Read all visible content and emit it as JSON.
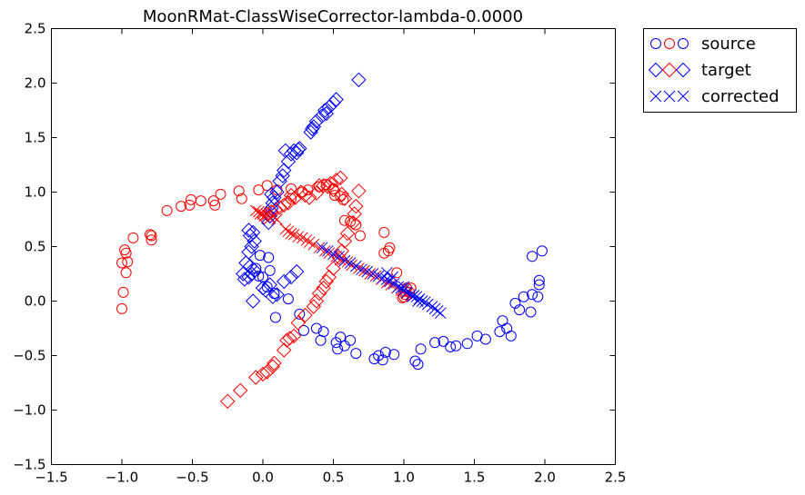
{
  "chart_data": {
    "type": "scatter",
    "title": "MoonRMat-ClassWiseCorrector-lambda-0.0000",
    "xlabel": "",
    "ylabel": "",
    "xlim": [
      -1.5,
      2.5
    ],
    "ylim": [
      -1.5,
      2.5
    ],
    "xticks": [
      -1.5,
      -1.0,
      -0.5,
      0.0,
      0.5,
      1.0,
      1.5,
      2.0,
      2.5
    ],
    "yticks": [
      -1.5,
      -1.0,
      -0.5,
      0.0,
      0.5,
      1.0,
      1.5,
      2.0,
      2.5
    ],
    "xtick_labels": [
      "−1.5",
      "−1.0",
      "−0.5",
      "0.0",
      "0.5",
      "1.0",
      "1.5",
      "2.0",
      "2.5"
    ],
    "ytick_labels": [
      "−1.5",
      "−1.0",
      "−0.5",
      "0.0",
      "0.5",
      "1.0",
      "1.5",
      "2.0",
      "2.5"
    ],
    "grid": false,
    "legend_position": "outside-top-right",
    "legend": [
      {
        "label": "source",
        "marker": "circle",
        "colors": [
          "#0000ff",
          "#ff0000",
          "#0000ff"
        ]
      },
      {
        "label": "target",
        "marker": "diamond",
        "colors": [
          "#0000ff",
          "#ff0000",
          "#0000ff"
        ]
      },
      {
        "label": "corrected",
        "marker": "x",
        "colors": [
          "#0000ff",
          "#0000ff",
          "#0000ff"
        ]
      }
    ],
    "series": [
      {
        "name": "source",
        "class": "red",
        "marker": "circle",
        "color": "#ff0000",
        "points": [
          [
            -1.0,
            -0.07
          ],
          [
            -0.99,
            0.08
          ],
          [
            -0.97,
            0.26
          ],
          [
            -1.0,
            0.35
          ],
          [
            -0.96,
            0.36
          ],
          [
            -0.98,
            0.47
          ],
          [
            -0.97,
            0.44
          ],
          [
            -0.92,
            0.58
          ],
          [
            -0.8,
            0.61
          ],
          [
            -0.79,
            0.56
          ],
          [
            -0.79,
            0.6
          ],
          [
            -0.68,
            0.83
          ],
          [
            -0.58,
            0.87
          ],
          [
            -0.52,
            0.88
          ],
          [
            -0.51,
            0.93
          ],
          [
            -0.44,
            0.92
          ],
          [
            -0.35,
            0.92
          ],
          [
            -0.34,
            0.88
          ],
          [
            -0.3,
            0.98
          ],
          [
            -0.17,
            1.01
          ],
          [
            -0.15,
            0.94
          ],
          [
            -0.03,
            1.02
          ],
          [
            0.03,
            1.06
          ],
          [
            0.1,
            1.02
          ],
          [
            0.2,
            1.03
          ],
          [
            0.2,
            0.94
          ],
          [
            0.28,
            1.0
          ],
          [
            0.32,
            1.02
          ],
          [
            0.4,
            1.05
          ],
          [
            0.45,
            1.07
          ],
          [
            0.51,
            0.97
          ],
          [
            0.5,
            1.03
          ],
          [
            0.55,
            0.96
          ],
          [
            0.57,
            0.93
          ],
          [
            0.58,
            0.74
          ],
          [
            0.62,
            0.73
          ],
          [
            0.66,
            0.7
          ],
          [
            0.69,
            0.6
          ],
          [
            0.86,
            0.63
          ],
          [
            0.9,
            0.49
          ],
          [
            0.89,
            0.46
          ],
          [
            0.86,
            0.44
          ],
          [
            0.95,
            0.26
          ],
          [
            1.0,
            0.04
          ],
          [
            1.05,
            0.12
          ],
          [
            1.02,
            0.12
          ],
          [
            1.01,
            0.09
          ],
          [
            1.04,
            0.08
          ],
          [
            1.01,
            0.06
          ],
          [
            0.99,
            0.03
          ]
        ]
      },
      {
        "name": "source",
        "class": "blue",
        "marker": "circle",
        "color": "#0000ff",
        "points": [
          [
            -0.02,
            0.42
          ],
          [
            0.04,
            0.4
          ],
          [
            -0.05,
            0.3
          ],
          [
            -0.03,
            0.23
          ],
          [
            0.0,
            0.22
          ],
          [
            0.05,
            0.28
          ],
          [
            0.03,
            0.13
          ],
          [
            0.08,
            0.07
          ],
          [
            0.09,
            -0.15
          ],
          [
            0.18,
            0.02
          ],
          [
            0.26,
            -0.12
          ],
          [
            0.29,
            -0.27
          ],
          [
            0.38,
            -0.25
          ],
          [
            0.41,
            -0.36
          ],
          [
            0.43,
            -0.28
          ],
          [
            0.52,
            -0.38
          ],
          [
            0.53,
            -0.44
          ],
          [
            0.55,
            -0.33
          ],
          [
            0.58,
            -0.41
          ],
          [
            0.62,
            -0.36
          ],
          [
            0.66,
            -0.48
          ],
          [
            0.79,
            -0.53
          ],
          [
            0.82,
            -0.5
          ],
          [
            0.85,
            -0.54
          ],
          [
            0.87,
            -0.47
          ],
          [
            0.93,
            -0.49
          ],
          [
            1.08,
            -0.55
          ],
          [
            1.1,
            -0.58
          ],
          [
            1.12,
            -0.44
          ],
          [
            1.22,
            -0.38
          ],
          [
            1.28,
            -0.37
          ],
          [
            1.33,
            -0.42
          ],
          [
            1.37,
            -0.41
          ],
          [
            1.45,
            -0.39
          ],
          [
            1.52,
            -0.32
          ],
          [
            1.58,
            -0.35
          ],
          [
            1.68,
            -0.28
          ],
          [
            1.7,
            -0.18
          ],
          [
            1.73,
            -0.25
          ],
          [
            1.76,
            -0.32
          ],
          [
            1.79,
            -0.02
          ],
          [
            1.82,
            -0.08
          ],
          [
            1.85,
            0.04
          ],
          [
            1.9,
            -0.1
          ],
          [
            1.91,
            0.06
          ],
          [
            1.95,
            0.04
          ],
          [
            1.96,
            0.19
          ],
          [
            1.96,
            0.15
          ],
          [
            1.98,
            0.46
          ],
          [
            1.91,
            0.41
          ]
        ]
      },
      {
        "name": "target",
        "class": "red",
        "marker": "diamond",
        "color": "#ff0000",
        "points": [
          [
            -0.25,
            -0.92
          ],
          [
            -0.16,
            -0.82
          ],
          [
            -0.05,
            -0.7
          ],
          [
            0.0,
            -0.67
          ],
          [
            0.03,
            -0.65
          ],
          [
            0.07,
            -0.6
          ],
          [
            0.08,
            -0.57
          ],
          [
            0.15,
            -0.45
          ],
          [
            0.17,
            -0.36
          ],
          [
            0.19,
            -0.34
          ],
          [
            0.22,
            -0.32
          ],
          [
            0.25,
            -0.2
          ],
          [
            0.3,
            -0.13
          ],
          [
            0.36,
            -0.05
          ],
          [
            0.38,
            0.0
          ],
          [
            0.4,
            0.07
          ],
          [
            0.43,
            0.12
          ],
          [
            0.45,
            0.18
          ],
          [
            0.47,
            0.22
          ],
          [
            0.5,
            0.3
          ],
          [
            0.54,
            0.4
          ],
          [
            0.56,
            0.46
          ],
          [
            0.58,
            0.55
          ],
          [
            0.6,
            0.62
          ],
          [
            0.64,
            0.72
          ],
          [
            0.65,
            0.8
          ],
          [
            0.66,
            0.87
          ],
          [
            0.58,
            0.94
          ],
          [
            0.56,
            0.98
          ],
          [
            0.5,
            1.02
          ],
          [
            0.46,
            1.05
          ],
          [
            0.43,
            1.06
          ],
          [
            0.4,
            1.06
          ],
          [
            0.38,
            0.99
          ],
          [
            0.33,
            0.95
          ],
          [
            0.3,
            0.97
          ],
          [
            0.27,
            1.0
          ],
          [
            0.23,
            0.95
          ],
          [
            0.2,
            0.97
          ],
          [
            0.18,
            0.9
          ],
          [
            0.15,
            0.88
          ],
          [
            0.12,
            0.86
          ],
          [
            0.09,
            0.84
          ],
          [
            0.06,
            0.82
          ],
          [
            0.03,
            0.8
          ],
          [
            0.01,
            0.77
          ],
          [
            0.68,
            1.01
          ],
          [
            0.52,
            1.11
          ],
          [
            0.55,
            1.13
          ],
          [
            0.48,
            1.08
          ]
        ]
      },
      {
        "name": "target",
        "class": "blue",
        "marker": "diamond",
        "color": "#0000ff",
        "points": [
          [
            -0.07,
            0.0
          ],
          [
            -0.13,
            0.2
          ],
          [
            -0.1,
            0.22
          ],
          [
            -0.08,
            0.25
          ],
          [
            -0.06,
            0.28
          ],
          [
            -0.09,
            0.32
          ],
          [
            -0.12,
            0.35
          ],
          [
            -0.1,
            0.45
          ],
          [
            -0.08,
            0.5
          ],
          [
            -0.06,
            0.55
          ],
          [
            -0.09,
            0.6
          ],
          [
            -0.1,
            0.65
          ],
          [
            -0.07,
            0.63
          ],
          [
            0.0,
            0.12
          ],
          [
            0.02,
            0.1
          ],
          [
            0.05,
            0.15
          ],
          [
            0.1,
            0.06
          ],
          [
            0.15,
            0.18
          ],
          [
            0.2,
            0.22
          ],
          [
            0.24,
            0.27
          ],
          [
            0.04,
            0.72
          ],
          [
            0.05,
            0.78
          ],
          [
            0.06,
            0.85
          ],
          [
            0.07,
            0.9
          ],
          [
            0.08,
            0.95
          ],
          [
            0.06,
            0.98
          ],
          [
            0.1,
            1.0
          ],
          [
            0.12,
            1.1
          ],
          [
            0.14,
            1.15
          ],
          [
            0.15,
            1.2
          ],
          [
            0.18,
            1.28
          ],
          [
            0.2,
            1.35
          ],
          [
            0.22,
            1.38
          ],
          [
            0.24,
            1.36
          ],
          [
            0.26,
            1.4
          ],
          [
            0.34,
            1.55
          ],
          [
            0.36,
            1.6
          ],
          [
            0.38,
            1.65
          ],
          [
            0.42,
            1.7
          ],
          [
            0.45,
            1.72
          ],
          [
            0.47,
            1.78
          ],
          [
            0.5,
            1.82
          ],
          [
            0.52,
            1.85
          ],
          [
            0.68,
            2.03
          ],
          [
            0.35,
            1.58
          ],
          [
            0.25,
            1.39
          ],
          [
            0.16,
            1.38
          ],
          [
            0.44,
            1.75
          ],
          [
            -0.14,
            0.25
          ],
          [
            0.07,
            0.04
          ]
        ]
      },
      {
        "name": "corrected",
        "class": "red",
        "marker": "x",
        "color": "#ff0000",
        "points": [
          [
            -0.05,
            0.83
          ],
          [
            -0.03,
            0.82
          ],
          [
            -0.02,
            0.8
          ],
          [
            0.0,
            0.8
          ],
          [
            0.01,
            0.78
          ],
          [
            0.03,
            0.79
          ],
          [
            0.05,
            0.76
          ],
          [
            0.07,
            0.78
          ],
          [
            0.1,
            0.75
          ],
          [
            0.16,
            0.66
          ],
          [
            0.18,
            0.64
          ],
          [
            0.2,
            0.62
          ],
          [
            0.22,
            0.61
          ],
          [
            0.25,
            0.59
          ],
          [
            0.28,
            0.58
          ],
          [
            0.31,
            0.56
          ],
          [
            0.33,
            0.54
          ],
          [
            0.36,
            0.52
          ],
          [
            0.4,
            0.49
          ],
          [
            0.44,
            0.46
          ],
          [
            0.47,
            0.44
          ],
          [
            0.52,
            0.41
          ],
          [
            0.55,
            0.38
          ],
          [
            0.6,
            0.36
          ],
          [
            0.63,
            0.33
          ],
          [
            0.68,
            0.3
          ],
          [
            0.72,
            0.28
          ],
          [
            0.76,
            0.25
          ],
          [
            0.8,
            0.23
          ],
          [
            0.84,
            0.2
          ],
          [
            0.88,
            0.17
          ],
          [
            0.91,
            0.15
          ],
          [
            0.95,
            0.12
          ],
          [
            0.98,
            0.1
          ],
          [
            1.02,
            0.07
          ]
        ]
      },
      {
        "name": "corrected",
        "class": "blue",
        "marker": "x",
        "color": "#0000ff",
        "points": [
          [
            0.42,
            0.49
          ],
          [
            0.46,
            0.46
          ],
          [
            0.5,
            0.43
          ],
          [
            0.54,
            0.41
          ],
          [
            0.58,
            0.37
          ],
          [
            0.62,
            0.35
          ],
          [
            0.66,
            0.32
          ],
          [
            0.7,
            0.29
          ],
          [
            0.74,
            0.27
          ],
          [
            0.78,
            0.25
          ],
          [
            0.82,
            0.23
          ],
          [
            0.85,
            0.21
          ],
          [
            0.88,
            0.2
          ],
          [
            0.9,
            0.18
          ],
          [
            0.93,
            0.16
          ],
          [
            0.96,
            0.13
          ],
          [
            0.98,
            0.12
          ],
          [
            1.0,
            0.1
          ],
          [
            1.02,
            0.08
          ],
          [
            1.05,
            0.06
          ],
          [
            1.07,
            0.05
          ],
          [
            1.09,
            0.04
          ],
          [
            1.11,
            0.02
          ],
          [
            1.13,
            0.0
          ],
          [
            1.15,
            -0.01
          ],
          [
            1.17,
            -0.03
          ],
          [
            1.2,
            -0.05
          ],
          [
            1.22,
            -0.07
          ],
          [
            1.24,
            -0.09
          ],
          [
            1.26,
            -0.11
          ],
          [
            0.88,
            0.26
          ],
          [
            0.92,
            0.22
          ],
          [
            1.0,
            0.13
          ],
          [
            1.06,
            0.04
          ],
          [
            1.1,
            0.0
          ]
        ]
      }
    ]
  }
}
